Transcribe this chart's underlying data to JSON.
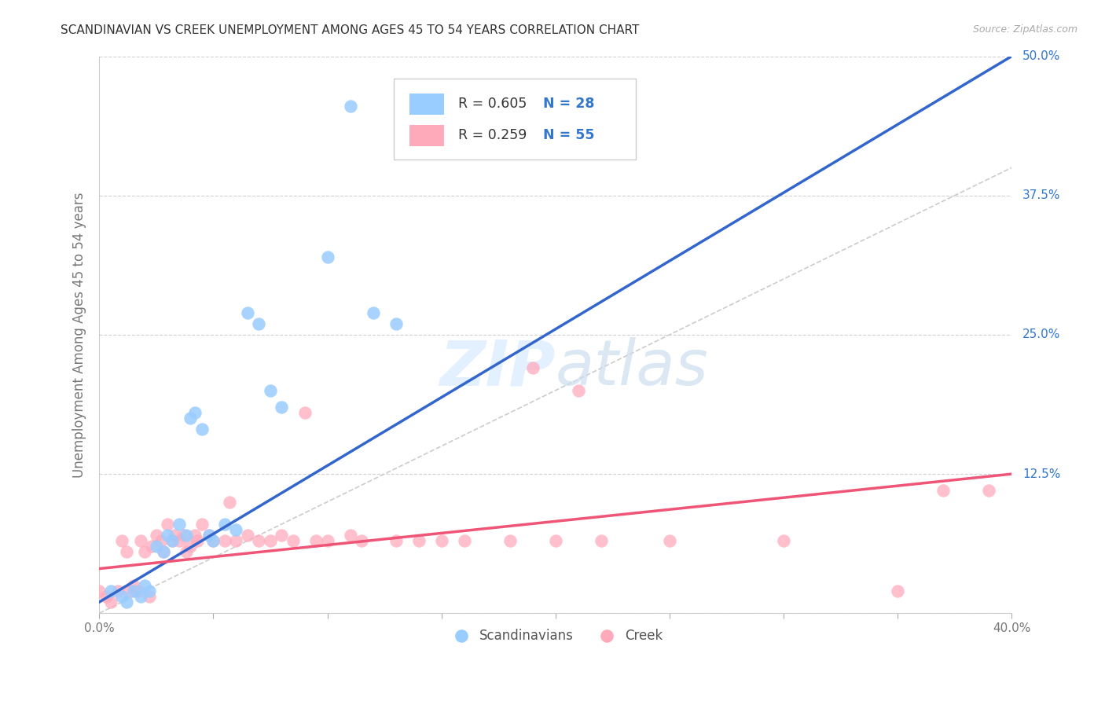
{
  "title": "SCANDINAVIAN VS CREEK UNEMPLOYMENT AMONG AGES 45 TO 54 YEARS CORRELATION CHART",
  "source": "Source: ZipAtlas.com",
  "ylabel": "Unemployment Among Ages 45 to 54 years",
  "xlim": [
    0.0,
    0.4
  ],
  "ylim": [
    0.0,
    0.5
  ],
  "xticks": [
    0.0,
    0.05,
    0.1,
    0.15,
    0.2,
    0.25,
    0.3,
    0.35,
    0.4
  ],
  "yticks": [
    0.0,
    0.125,
    0.25,
    0.375,
    0.5
  ],
  "diagonal_line_color": "#cccccc",
  "scandinavian_color": "#99ccff",
  "creek_color": "#ffaabb",
  "trend_scandinavian_color": "#3366cc",
  "trend_creek_color": "#ee5577",
  "scandinavian_R": 0.605,
  "scandinavian_N": 28,
  "creek_R": 0.259,
  "creek_N": 55,
  "text_blue": "#3377cc",
  "watermark_color": "#ddeeff",
  "scandinavian_data": [
    [
      0.005,
      0.02
    ],
    [
      0.01,
      0.015
    ],
    [
      0.012,
      0.01
    ],
    [
      0.015,
      0.02
    ],
    [
      0.018,
      0.015
    ],
    [
      0.02,
      0.025
    ],
    [
      0.022,
      0.02
    ],
    [
      0.025,
      0.06
    ],
    [
      0.028,
      0.055
    ],
    [
      0.03,
      0.07
    ],
    [
      0.032,
      0.065
    ],
    [
      0.035,
      0.08
    ],
    [
      0.038,
      0.07
    ],
    [
      0.04,
      0.175
    ],
    [
      0.042,
      0.18
    ],
    [
      0.045,
      0.165
    ],
    [
      0.048,
      0.07
    ],
    [
      0.05,
      0.065
    ],
    [
      0.055,
      0.08
    ],
    [
      0.06,
      0.075
    ],
    [
      0.065,
      0.27
    ],
    [
      0.07,
      0.26
    ],
    [
      0.075,
      0.2
    ],
    [
      0.08,
      0.185
    ],
    [
      0.1,
      0.32
    ],
    [
      0.11,
      0.455
    ],
    [
      0.12,
      0.27
    ],
    [
      0.13,
      0.26
    ]
  ],
  "creek_data": [
    [
      0.0,
      0.02
    ],
    [
      0.003,
      0.015
    ],
    [
      0.005,
      0.01
    ],
    [
      0.008,
      0.02
    ],
    [
      0.01,
      0.065
    ],
    [
      0.012,
      0.055
    ],
    [
      0.013,
      0.02
    ],
    [
      0.015,
      0.025
    ],
    [
      0.017,
      0.02
    ],
    [
      0.018,
      0.065
    ],
    [
      0.02,
      0.055
    ],
    [
      0.022,
      0.015
    ],
    [
      0.023,
      0.06
    ],
    [
      0.025,
      0.07
    ],
    [
      0.027,
      0.065
    ],
    [
      0.028,
      0.055
    ],
    [
      0.03,
      0.08
    ],
    [
      0.032,
      0.065
    ],
    [
      0.033,
      0.07
    ],
    [
      0.035,
      0.065
    ],
    [
      0.037,
      0.07
    ],
    [
      0.038,
      0.055
    ],
    [
      0.04,
      0.06
    ],
    [
      0.042,
      0.07
    ],
    [
      0.043,
      0.065
    ],
    [
      0.045,
      0.08
    ],
    [
      0.048,
      0.07
    ],
    [
      0.05,
      0.065
    ],
    [
      0.055,
      0.065
    ],
    [
      0.057,
      0.1
    ],
    [
      0.06,
      0.065
    ],
    [
      0.065,
      0.07
    ],
    [
      0.07,
      0.065
    ],
    [
      0.075,
      0.065
    ],
    [
      0.08,
      0.07
    ],
    [
      0.085,
      0.065
    ],
    [
      0.09,
      0.18
    ],
    [
      0.095,
      0.065
    ],
    [
      0.1,
      0.065
    ],
    [
      0.11,
      0.07
    ],
    [
      0.115,
      0.065
    ],
    [
      0.13,
      0.065
    ],
    [
      0.14,
      0.065
    ],
    [
      0.15,
      0.065
    ],
    [
      0.16,
      0.065
    ],
    [
      0.18,
      0.065
    ],
    [
      0.19,
      0.22
    ],
    [
      0.2,
      0.065
    ],
    [
      0.21,
      0.2
    ],
    [
      0.22,
      0.065
    ],
    [
      0.25,
      0.065
    ],
    [
      0.3,
      0.065
    ],
    [
      0.35,
      0.02
    ],
    [
      0.37,
      0.11
    ],
    [
      0.39,
      0.11
    ]
  ]
}
